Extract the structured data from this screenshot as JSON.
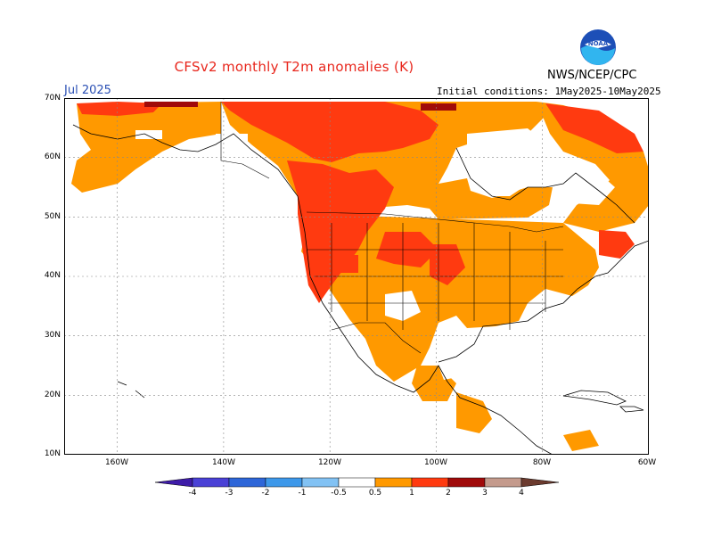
{
  "header": {
    "title": "CFSv2 monthly T2m anomalies (K)",
    "month": "Jul 2025",
    "initial_conditions": "Initial conditions: 1May2025-10May2025",
    "agency": "NWS/NCEP/CPC",
    "logo_text": "NOAA"
  },
  "map": {
    "region": "North America",
    "lon_range": [
      -170,
      -60
    ],
    "lat_range": [
      10,
      70
    ],
    "lat_labels": [
      "70N",
      "60N",
      "50N",
      "40N",
      "30N",
      "20N",
      "10N"
    ],
    "lon_labels": [
      "160W",
      "140W",
      "120W",
      "100W",
      "80W",
      "60W"
    ],
    "gridlines": true,
    "background_color": "#ffffff"
  },
  "colorbar": {
    "labels": [
      "-4",
      "-3",
      "-2",
      "-1",
      "-0.5",
      "0.5",
      "1",
      "2",
      "3",
      "4"
    ],
    "colors": [
      "#3e1ca8",
      "#4a41d6",
      "#2e66d8",
      "#3d98ea",
      "#82c2f4",
      "#ffffff",
      "#ff9900",
      "#ff3a10",
      "#a00a0a",
      "#c49a8c",
      "#6b3a2e"
    ]
  }
}
